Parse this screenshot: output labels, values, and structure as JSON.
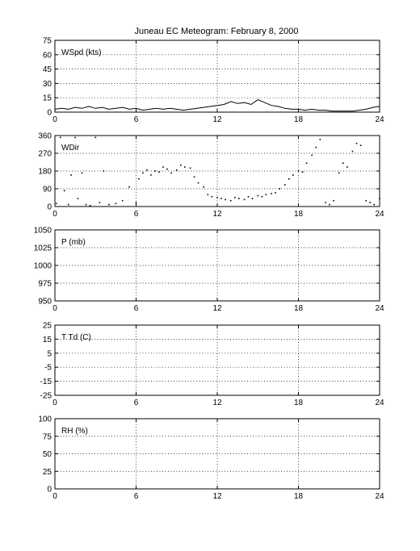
{
  "chart_data": {
    "title": "Juneau EC Meteogram:  February  8, 2000",
    "x_ticks": [
      0,
      6,
      12,
      18,
      24
    ],
    "xlim": [
      0,
      24
    ],
    "grid": true,
    "panels": [
      {
        "label": "WSpd (kts)",
        "type": "line",
        "ylim": [
          0,
          75
        ],
        "y_ticks": [
          0,
          15,
          30,
          45,
          60,
          75
        ],
        "series": [
          {
            "x": [
              0,
              0.5,
              1,
              1.5,
              2,
              2.5,
              3,
              3.5,
              4,
              4.5,
              5,
              5.5,
              6,
              6.5,
              7,
              7.5,
              8,
              8.5,
              9,
              9.5,
              10,
              10.5,
              11,
              11.5,
              12,
              12.5,
              13,
              13.5,
              14,
              14.5,
              15,
              15.5,
              16,
              16.5,
              17,
              17.5,
              18,
              18.5,
              19,
              19.5,
              20,
              20.5,
              21,
              21.5,
              22,
              22.5,
              23,
              23.5,
              24
            ],
            "y": [
              3,
              4,
              3,
              5,
              4,
              6,
              4,
              5,
              3,
              4,
              5,
              3,
              4,
              2,
              3,
              4,
              3,
              4,
              3,
              2,
              3,
              4,
              5,
              6,
              7,
              8,
              11,
              9,
              10,
              8,
              13,
              10,
              7,
              6,
              4,
              3,
              3,
              2,
              3,
              2,
              2,
              1,
              1,
              1,
              1,
              2,
              3,
              5,
              6
            ]
          }
        ]
      },
      {
        "label": "WDir",
        "type": "scatter",
        "ylim": [
          0,
          360
        ],
        "y_ticks": [
          0,
          90,
          180,
          270,
          360
        ],
        "series": [
          {
            "x": [
              0.1,
              0.4,
              0.7,
              1.0,
              1.2,
              1.5,
              1.7,
              2.0,
              2.3,
              2.6,
              3.0,
              3.3,
              3.6,
              4.0,
              4.5,
              5.0,
              5.5,
              6.0,
              6.2,
              6.5,
              6.8,
              7.1,
              7.4,
              7.7,
              8.0,
              8.3,
              8.6,
              9.0,
              9.3,
              9.6,
              10.0,
              10.3,
              10.6,
              11.0,
              11.3,
              11.6,
              12.0,
              12.3,
              12.6,
              13.0,
              13.3,
              13.6,
              14.0,
              14.3,
              14.6,
              15.0,
              15.3,
              15.6,
              16.0,
              16.3,
              16.6,
              17.0,
              17.3,
              17.6,
              18.0,
              18.3,
              18.6,
              19.0,
              19.3,
              19.6,
              20.0,
              20.3,
              20.6,
              21.0,
              21.3,
              21.6,
              22.0,
              22.3,
              22.6,
              23.0,
              23.3,
              23.6,
              24.0
            ],
            "y": [
              15,
              350,
              80,
              10,
              160,
              350,
              40,
              170,
              10,
              5,
              350,
              20,
              180,
              10,
              15,
              30,
              100,
              20,
              140,
              170,
              185,
              160,
              180,
              175,
              200,
              190,
              170,
              185,
              210,
              200,
              195,
              150,
              120,
              100,
              60,
              50,
              45,
              40,
              35,
              30,
              45,
              40,
              35,
              50,
              40,
              55,
              50,
              60,
              65,
              70,
              90,
              110,
              140,
              160,
              180,
              175,
              220,
              260,
              300,
              340,
              20,
              10,
              30,
              170,
              220,
              200,
              280,
              320,
              310,
              30,
              20,
              10,
              40
            ]
          }
        ]
      },
      {
        "label": "P (mb)",
        "type": "line",
        "ylim": [
          950,
          1050
        ],
        "y_ticks": [
          950,
          975,
          1000,
          1025,
          1050
        ],
        "series": []
      },
      {
        "label": "T Td (C)",
        "type": "line",
        "ylim": [
          -25,
          25
        ],
        "y_ticks": [
          -25,
          -15,
          -5,
          5,
          15,
          25
        ],
        "series": []
      },
      {
        "label": "RH (%)",
        "type": "line",
        "ylim": [
          0,
          100
        ],
        "y_ticks": [
          0,
          25,
          50,
          75,
          100
        ],
        "series": []
      }
    ]
  }
}
